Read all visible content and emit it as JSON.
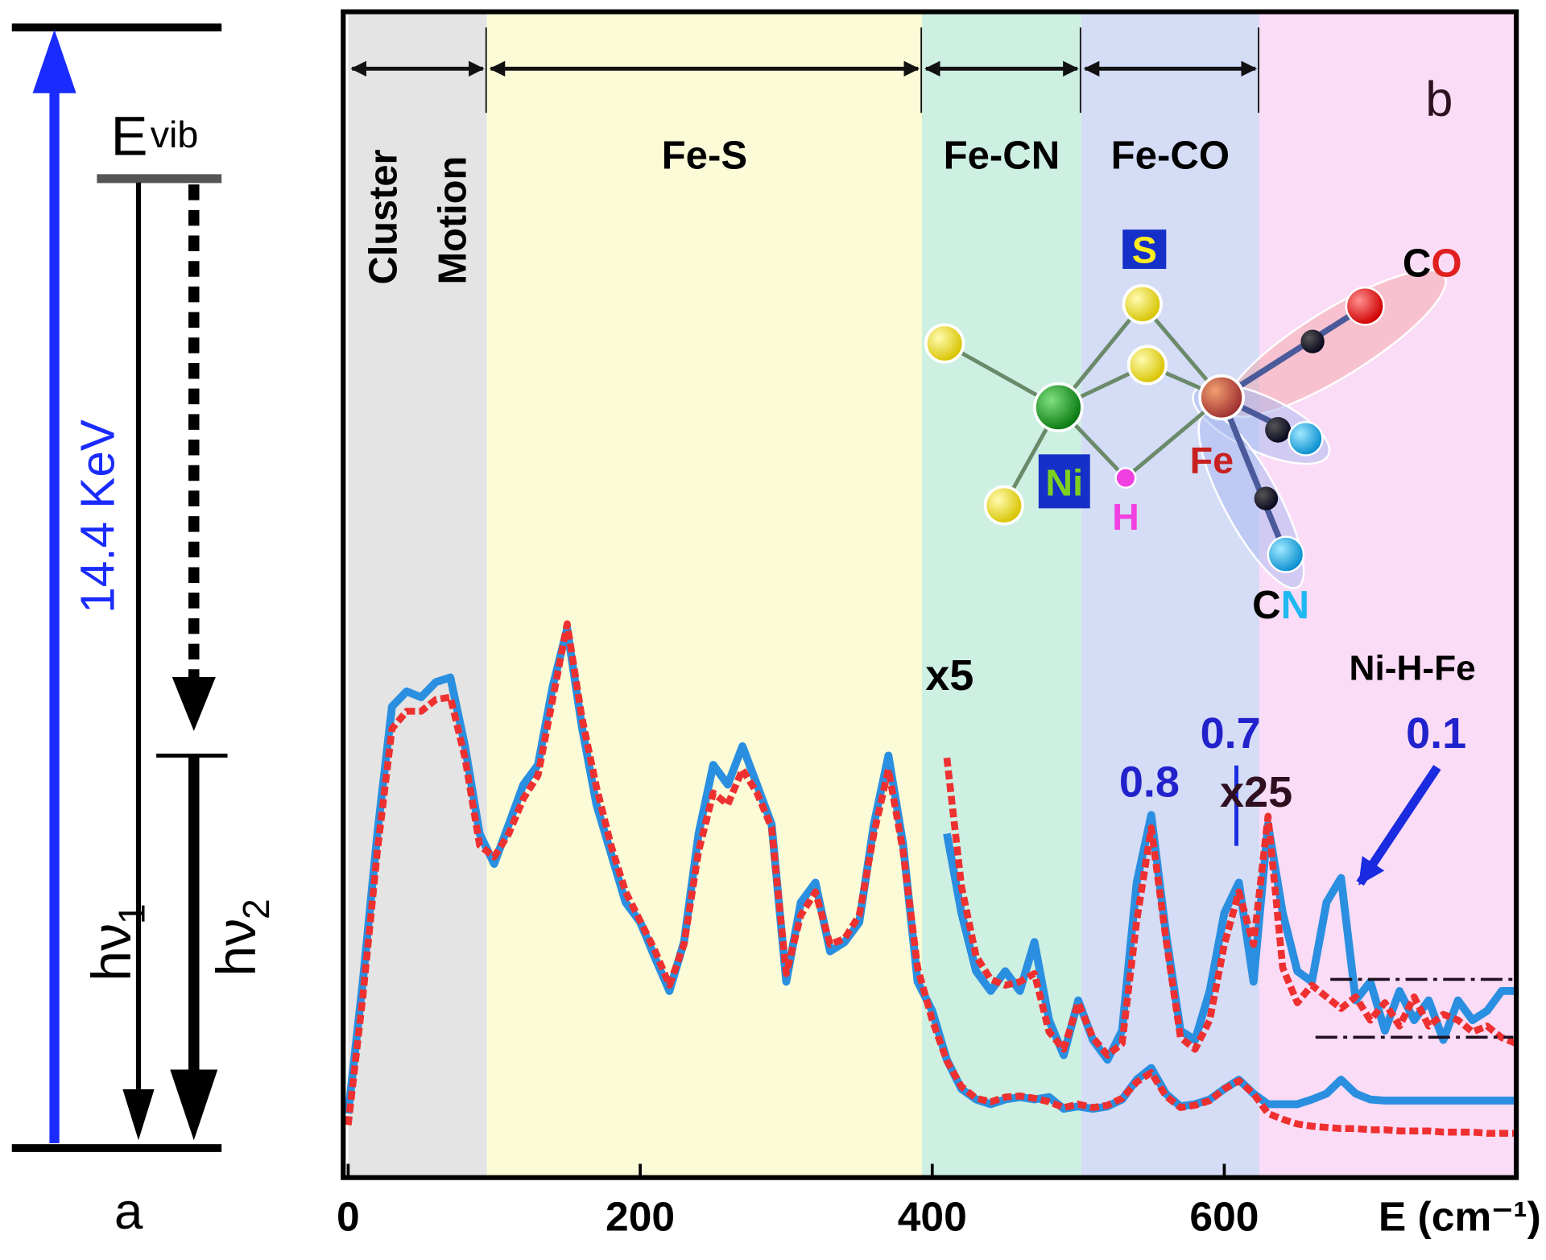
{
  "chart_data": {
    "type": "line",
    "xlabel": "E (cm⁻¹)",
    "panel_label": "b",
    "xlim": [
      0,
      800
    ],
    "xticks": [
      0,
      200,
      400,
      600
    ],
    "ylim": [
      0,
      100
    ],
    "x": [
      0,
      10,
      20,
      30,
      40,
      50,
      60,
      70,
      80,
      90,
      100,
      110,
      120,
      130,
      140,
      150,
      160,
      170,
      180,
      190,
      200,
      210,
      220,
      230,
      240,
      250,
      260,
      270,
      280,
      290,
      300,
      310,
      320,
      330,
      340,
      350,
      360,
      370,
      380,
      390,
      400,
      410,
      420,
      430,
      440,
      450,
      460,
      470,
      480,
      490,
      500,
      510,
      520,
      530,
      540,
      550,
      560,
      570,
      580,
      590,
      600,
      610,
      620,
      630,
      640,
      650,
      660,
      670,
      680,
      690,
      700,
      710,
      720,
      730,
      740,
      750,
      760,
      770,
      780,
      790,
      800
    ],
    "series": [
      {
        "color": "#2a8fe0",
        "dashed": false,
        "values": [
          5.5,
          16.8,
          29.5,
          40.4,
          41.7,
          41.2,
          42.5,
          42.9,
          37.0,
          29.5,
          26.9,
          30.3,
          33.7,
          35.4,
          42.1,
          47.1,
          38.7,
          32.0,
          27.8,
          23.6,
          21.9,
          18.9,
          16.0,
          20.2,
          29.5,
          35.4,
          33.7,
          37.0,
          33.7,
          30.3,
          16.8,
          23.6,
          25.3,
          19.4,
          20.2,
          21.9,
          30.3,
          36.2,
          28.6,
          16.8,
          14.3,
          10.1,
          7.6,
          6.7,
          6.3,
          6.7,
          6.9,
          6.7,
          6.9,
          5.9,
          6.1,
          5.9,
          6.1,
          6.7,
          8.4,
          9.4,
          7.2,
          6.1,
          6.3,
          6.7,
          7.6,
          8.4,
          7.2,
          6.3,
          6.3,
          6.3,
          6.7,
          7.2,
          8.4,
          7.2,
          6.7,
          6.6,
          6.6,
          6.6,
          6.6,
          6.6,
          6.6,
          6.6,
          6.6,
          6.6,
          6.6
        ]
      },
      {
        "color": "#ee3030",
        "dashed": true,
        "values": [
          4.5,
          15.5,
          28.0,
          38.5,
          40.0,
          40.0,
          41.0,
          41.2,
          36.0,
          28.5,
          27.5,
          29.5,
          32.5,
          34.5,
          41.0,
          47.5,
          39.5,
          33.5,
          28.5,
          24.5,
          22.0,
          19.5,
          16.5,
          20.0,
          28.0,
          33.0,
          32.0,
          35.0,
          33.0,
          30.0,
          17.5,
          22.5,
          24.5,
          20.0,
          20.5,
          22.5,
          29.5,
          35.0,
          28.0,
          18.0,
          13.5,
          10.0,
          7.8,
          6.8,
          6.5,
          6.9,
          7.0,
          6.8,
          6.5,
          6.0,
          6.3,
          6.0,
          6.2,
          6.8,
          8.2,
          9.0,
          7.0,
          6.0,
          6.2,
          6.6,
          7.6,
          8.3,
          7.2,
          5.5,
          5.0,
          4.6,
          4.4,
          4.3,
          4.2,
          4.2,
          4.1,
          4.1,
          4.0,
          4.0,
          4.0,
          3.9,
          3.9,
          3.9,
          3.8,
          3.8,
          3.8
        ]
      },
      {
        "color": "#2a8fe0",
        "dashed": false,
        "values": [
          null,
          null,
          null,
          null,
          null,
          null,
          null,
          null,
          null,
          null,
          null,
          null,
          null,
          null,
          null,
          null,
          null,
          null,
          null,
          null,
          null,
          null,
          null,
          null,
          null,
          null,
          null,
          null,
          null,
          null,
          null,
          null,
          null,
          null,
          null,
          null,
          null,
          null,
          null,
          null,
          null,
          29.5,
          22.7,
          17.7,
          16.0,
          17.7,
          16.0,
          20.2,
          13.5,
          10.5,
          15.2,
          11.8,
          10.1,
          12.6,
          25.3,
          31.1,
          21.0,
          12.6,
          11.8,
          16.0,
          22.7,
          25.3,
          16.8,
          30.3,
          22.7,
          17.7,
          16.8,
          23.6,
          25.7,
          15.2,
          16.8,
          12.6,
          16.0,
          13.5,
          15.2,
          11.8,
          15.2,
          13.5,
          14.3,
          16.0,
          16.0
        ]
      },
      {
        "color": "#ee3030",
        "dashed": true,
        "values": [
          null,
          null,
          null,
          null,
          null,
          null,
          null,
          null,
          null,
          null,
          null,
          null,
          null,
          null,
          null,
          null,
          null,
          null,
          null,
          null,
          null,
          null,
          null,
          null,
          null,
          null,
          null,
          null,
          null,
          null,
          null,
          null,
          null,
          null,
          null,
          null,
          null,
          null,
          null,
          null,
          null,
          36.0,
          25.0,
          19.0,
          17.0,
          16.5,
          16.8,
          17.5,
          12.5,
          11.0,
          15.0,
          12.0,
          10.5,
          11.5,
          22.0,
          30.0,
          20.5,
          12.0,
          11.0,
          13.5,
          20.0,
          24.5,
          20.0,
          31.0,
          18.0,
          15.0,
          16.5,
          15.5,
          14.5,
          15.5,
          13.5,
          15.0,
          13.0,
          15.5,
          13.0,
          14.0,
          13.5,
          12.5,
          13.0,
          12.0,
          11.5
        ]
      }
    ],
    "regions": [
      {
        "labels": [
          "Cluster",
          "Motion"
        ],
        "range": [
          0,
          95
        ],
        "color": "#e4e4e4"
      },
      {
        "labels": [
          "Fe-S"
        ],
        "range": [
          95,
          393
        ],
        "color": "#fbfbd8"
      },
      {
        "labels": [
          "Fe-CN"
        ],
        "range": [
          393,
          502
        ],
        "color": "#cdf0e2"
      },
      {
        "labels": [
          "Fe-CO"
        ],
        "range": [
          502,
          624
        ],
        "color": "#d4dcf6"
      },
      {
        "labels": [],
        "range": [
          624,
          800
        ],
        "color": "#fbdcf6"
      }
    ],
    "annotations": [
      {
        "text": "x5",
        "color": "#000000"
      },
      {
        "text": "0.8",
        "color": "#2222cc"
      },
      {
        "text": "0.7",
        "color": "#2222cc"
      },
      {
        "text": "x25",
        "color": "#301020"
      },
      {
        "text": "0.1",
        "color": "#2222cc"
      },
      {
        "text": "Ni-H-Fe",
        "color": "#000000"
      }
    ]
  },
  "molecule": {
    "S": "S",
    "Ni": "Ni",
    "H": "H",
    "Fe": "Fe",
    "CO": [
      "C",
      "O"
    ],
    "CN": [
      "C",
      "N"
    ]
  },
  "energy_diagram": {
    "panel_label": "a",
    "level": {
      "main": "E",
      "sub": "vib"
    },
    "excitation": "14.4 KeV",
    "hv1": {
      "main": "hν",
      "sub": "1"
    },
    "hv2": {
      "main": "hν",
      "sub": "2"
    }
  }
}
